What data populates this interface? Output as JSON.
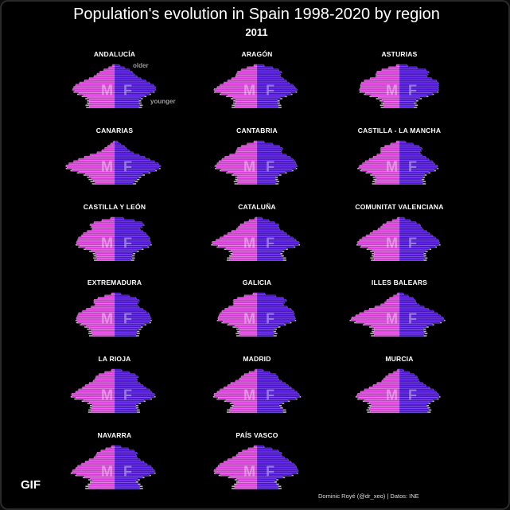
{
  "header": {
    "title": "Population's evolution in Spain 1998-2020 by region",
    "year": "2011"
  },
  "badge": "GIF",
  "caption": "Dominic Royé (@dr_xeo) | Datos: INE",
  "annotations": {
    "older": "older",
    "younger": "younger"
  },
  "colors": {
    "male": "#d63bd6",
    "male_line": "#f59cf5",
    "female": "#4f13d6",
    "female_line": "#7e55f0",
    "older_year_outline": "#d8d8d8",
    "background": "#000000"
  },
  "chart_data": {
    "type": "population-pyramid-small-multiples",
    "year": "2011",
    "sex_labels": {
      "male": "M",
      "female": "F"
    },
    "age_groups": 20,
    "age_labels_shown": false,
    "axis_labels_shown": false,
    "note": "Horizontal age pyramids per region; male share to the left, female to the right; light outline marks a previous year's profile.",
    "panels": [
      {
        "region": "ANDALUCÍA",
        "male": [
          2.6,
          2.7,
          2.6,
          2.6,
          2.8,
          3.2,
          3.7,
          4.1,
          4.3,
          4.2,
          4.0,
          3.6,
          3.1,
          2.6,
          2.1,
          1.8,
          1.5,
          1.1,
          0.6,
          0.2
        ],
        "female": [
          2.5,
          2.6,
          2.5,
          2.5,
          2.7,
          3.1,
          3.6,
          4.0,
          4.2,
          4.2,
          4.0,
          3.6,
          3.2,
          2.7,
          2.3,
          2.0,
          1.8,
          1.5,
          1.0,
          0.5
        ]
      },
      {
        "region": "ARAGÓN",
        "male": [
          2.3,
          2.3,
          2.2,
          2.2,
          2.5,
          3.0,
          3.7,
          4.3,
          4.4,
          4.1,
          3.8,
          3.4,
          3.0,
          2.6,
          2.2,
          2.1,
          2.0,
          1.6,
          1.0,
          0.3
        ],
        "female": [
          2.2,
          2.2,
          2.1,
          2.1,
          2.4,
          2.9,
          3.5,
          4.0,
          4.1,
          3.9,
          3.7,
          3.3,
          3.0,
          2.7,
          2.4,
          2.4,
          2.5,
          2.2,
          1.6,
          0.7
        ]
      },
      {
        "region": "ASTURIAS",
        "male": [
          1.6,
          1.7,
          1.6,
          1.8,
          2.2,
          2.9,
          3.5,
          4.0,
          4.1,
          4.0,
          4.0,
          3.9,
          3.6,
          3.0,
          2.4,
          2.4,
          2.3,
          1.8,
          1.1,
          0.3
        ],
        "female": [
          1.5,
          1.6,
          1.5,
          1.7,
          2.1,
          2.8,
          3.4,
          3.9,
          4.0,
          4.0,
          4.0,
          4.0,
          3.8,
          3.3,
          2.8,
          2.9,
          3.0,
          2.7,
          1.8,
          0.8
        ]
      },
      {
        "region": "CANARIAS",
        "male": [
          2.0,
          2.2,
          2.4,
          2.6,
          3.0,
          3.7,
          4.4,
          4.9,
          5.0,
          4.7,
          4.2,
          3.7,
          3.1,
          2.5,
          1.8,
          1.3,
          1.0,
          0.7,
          0.4,
          0.1
        ],
        "female": [
          1.9,
          2.1,
          2.3,
          2.5,
          2.9,
          3.5,
          4.2,
          4.6,
          4.7,
          4.5,
          4.1,
          3.6,
          3.1,
          2.5,
          1.9,
          1.5,
          1.2,
          1.0,
          0.6,
          0.3
        ]
      },
      {
        "region": "CANTABRIA",
        "male": [
          2.0,
          2.1,
          2.0,
          2.0,
          2.4,
          3.0,
          3.7,
          4.2,
          4.3,
          4.1,
          3.9,
          3.6,
          3.3,
          2.8,
          2.2,
          2.1,
          2.0,
          1.6,
          1.0,
          0.3
        ],
        "female": [
          1.9,
          2.0,
          1.9,
          1.9,
          2.3,
          2.9,
          3.6,
          4.0,
          4.1,
          4.0,
          3.9,
          3.7,
          3.4,
          3.0,
          2.5,
          2.5,
          2.6,
          2.3,
          1.6,
          0.7
        ]
      },
      {
        "region": "CASTILLA - LA MANCHA",
        "male": [
          2.5,
          2.5,
          2.4,
          2.5,
          2.8,
          3.3,
          3.9,
          4.2,
          4.1,
          3.8,
          3.5,
          3.1,
          2.7,
          2.3,
          1.9,
          1.9,
          1.9,
          1.5,
          0.9,
          0.3
        ],
        "female": [
          2.4,
          2.4,
          2.3,
          2.4,
          2.6,
          3.0,
          3.6,
          3.9,
          3.9,
          3.6,
          3.4,
          3.0,
          2.7,
          2.3,
          2.1,
          2.2,
          2.3,
          2.0,
          1.4,
          0.6
        ]
      },
      {
        "region": "CASTILLA Y LEÓN",
        "male": [
          1.8,
          1.9,
          1.9,
          2.0,
          2.4,
          3.0,
          3.6,
          3.9,
          3.9,
          3.8,
          3.7,
          3.4,
          3.2,
          2.8,
          2.3,
          2.4,
          2.5,
          2.1,
          1.3,
          0.4
        ],
        "female": [
          1.7,
          1.8,
          1.8,
          1.9,
          2.3,
          2.8,
          3.4,
          3.7,
          3.7,
          3.6,
          3.6,
          3.4,
          3.2,
          2.9,
          2.6,
          2.8,
          3.0,
          2.8,
          2.0,
          0.9
        ]
      },
      {
        "region": "CATALUÑA",
        "male": [
          2.8,
          2.8,
          2.6,
          2.5,
          2.7,
          3.2,
          4.0,
          4.6,
          4.6,
          4.2,
          3.8,
          3.4,
          3.0,
          2.6,
          2.1,
          1.9,
          1.7,
          1.3,
          0.8,
          0.2
        ],
        "female": [
          2.7,
          2.7,
          2.5,
          2.4,
          2.6,
          3.0,
          3.8,
          4.3,
          4.3,
          4.0,
          3.7,
          3.3,
          3.0,
          2.7,
          2.3,
          2.2,
          2.2,
          1.8,
          1.2,
          0.5
        ]
      },
      {
        "region": "COMUNITAT VALENCIANA",
        "male": [
          2.6,
          2.7,
          2.6,
          2.6,
          2.8,
          3.2,
          3.9,
          4.3,
          4.3,
          4.1,
          3.8,
          3.4,
          3.0,
          2.7,
          2.2,
          1.9,
          1.7,
          1.3,
          0.7,
          0.2
        ],
        "female": [
          2.5,
          2.6,
          2.5,
          2.5,
          2.7,
          3.1,
          3.7,
          4.1,
          4.1,
          4.0,
          3.7,
          3.4,
          3.1,
          2.8,
          2.4,
          2.2,
          2.1,
          1.7,
          1.1,
          0.5
        ]
      },
      {
        "region": "EXTREMADURA",
        "male": [
          2.3,
          2.4,
          2.4,
          2.6,
          2.9,
          3.4,
          3.8,
          3.9,
          3.9,
          3.8,
          3.7,
          3.3,
          2.9,
          2.4,
          2.0,
          2.1,
          2.1,
          1.7,
          1.0,
          0.3
        ],
        "female": [
          2.2,
          2.3,
          2.3,
          2.5,
          2.7,
          3.1,
          3.6,
          3.7,
          3.7,
          3.6,
          3.5,
          3.2,
          2.9,
          2.5,
          2.3,
          2.4,
          2.5,
          2.2,
          1.5,
          0.6
        ]
      },
      {
        "region": "GALICIA",
        "male": [
          1.8,
          1.9,
          1.8,
          1.9,
          2.3,
          2.9,
          3.5,
          4.0,
          4.0,
          3.9,
          3.8,
          3.6,
          3.3,
          2.9,
          2.4,
          2.4,
          2.4,
          2.0,
          1.3,
          0.4
        ],
        "female": [
          1.7,
          1.8,
          1.7,
          1.8,
          2.2,
          2.8,
          3.4,
          3.9,
          3.9,
          3.8,
          3.8,
          3.7,
          3.5,
          3.1,
          2.7,
          2.8,
          3.0,
          2.7,
          1.9,
          0.8
        ]
      },
      {
        "region": "ILLES BALEARS",
        "male": [
          2.6,
          2.7,
          2.6,
          2.6,
          2.9,
          3.6,
          4.5,
          5.0,
          4.9,
          4.5,
          4.1,
          3.6,
          3.1,
          2.5,
          1.9,
          1.5,
          1.3,
          1.0,
          0.6,
          0.2
        ],
        "female": [
          2.5,
          2.6,
          2.5,
          2.5,
          2.8,
          3.4,
          4.2,
          4.6,
          4.5,
          4.2,
          3.9,
          3.5,
          3.0,
          2.5,
          2.0,
          1.7,
          1.6,
          1.4,
          0.9,
          0.4
        ]
      },
      {
        "region": "LA RIOJA",
        "male": [
          2.4,
          2.4,
          2.3,
          2.3,
          2.6,
          3.2,
          4.0,
          4.4,
          4.4,
          4.0,
          3.7,
          3.3,
          3.0,
          2.6,
          2.2,
          2.0,
          1.9,
          1.6,
          1.0,
          0.3
        ],
        "female": [
          2.3,
          2.3,
          2.2,
          2.2,
          2.5,
          3.0,
          3.7,
          4.1,
          4.1,
          3.8,
          3.6,
          3.2,
          2.9,
          2.6,
          2.3,
          2.3,
          2.4,
          2.1,
          1.5,
          0.7
        ]
      },
      {
        "region": "MADRID",
        "male": [
          2.8,
          2.8,
          2.5,
          2.4,
          2.6,
          3.2,
          4.0,
          4.4,
          4.4,
          4.1,
          3.8,
          3.4,
          3.0,
          2.7,
          2.2,
          1.8,
          1.6,
          1.3,
          0.8,
          0.2
        ],
        "female": [
          2.7,
          2.7,
          2.4,
          2.3,
          2.6,
          3.2,
          4.0,
          4.4,
          4.3,
          4.1,
          3.8,
          3.5,
          3.2,
          2.9,
          2.5,
          2.2,
          2.1,
          1.9,
          1.3,
          0.6
        ]
      },
      {
        "region": "MURCIA",
        "male": [
          3.0,
          3.1,
          3.0,
          2.9,
          3.1,
          3.6,
          4.2,
          4.4,
          4.3,
          4.0,
          3.6,
          3.1,
          2.7,
          2.3,
          1.8,
          1.6,
          1.4,
          1.1,
          0.6,
          0.2
        ],
        "female": [
          2.9,
          3.0,
          2.9,
          2.8,
          3.0,
          3.4,
          3.9,
          4.1,
          4.0,
          3.8,
          3.5,
          3.1,
          2.7,
          2.4,
          2.0,
          1.9,
          1.8,
          1.5,
          1.0,
          0.4
        ]
      },
      {
        "region": "NAVARRA",
        "male": [
          2.7,
          2.7,
          2.5,
          2.3,
          2.5,
          3.1,
          3.9,
          4.4,
          4.3,
          4.0,
          3.8,
          3.4,
          3.0,
          2.6,
          2.1,
          1.9,
          1.8,
          1.4,
          0.9,
          0.3
        ],
        "female": [
          2.6,
          2.6,
          2.4,
          2.2,
          2.4,
          2.9,
          3.6,
          4.1,
          4.1,
          3.9,
          3.7,
          3.3,
          3.0,
          2.6,
          2.3,
          2.2,
          2.3,
          2.0,
          1.4,
          0.6
        ]
      },
      {
        "region": "PAÍS VASCO",
        "male": [
          2.3,
          2.3,
          2.1,
          1.9,
          2.1,
          2.8,
          3.8,
          4.3,
          4.4,
          4.2,
          4.0,
          3.8,
          3.4,
          3.0,
          2.5,
          2.1,
          1.9,
          1.5,
          0.9,
          0.3
        ],
        "female": [
          2.2,
          2.2,
          2.0,
          1.8,
          2.0,
          2.7,
          3.6,
          4.1,
          4.2,
          4.1,
          4.0,
          3.8,
          3.5,
          3.2,
          2.8,
          2.5,
          2.5,
          2.2,
          1.5,
          0.7
        ]
      }
    ]
  }
}
